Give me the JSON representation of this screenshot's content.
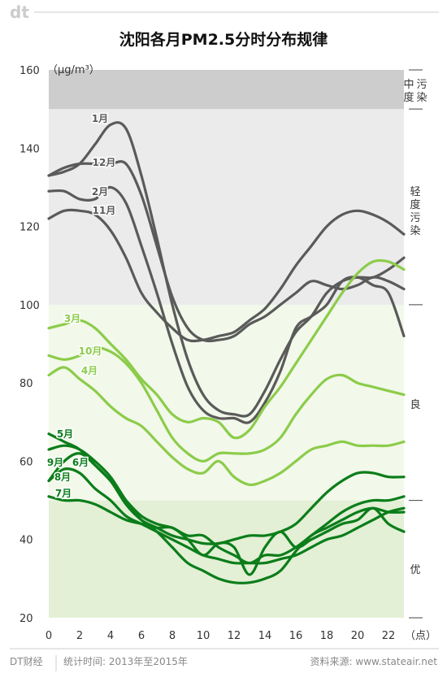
{
  "brand": {
    "logo": "dt",
    "source": "DT财经"
  },
  "footer": {
    "period": "统计时间: 2013年至2015年",
    "source": "资料来源: www.stateair.net"
  },
  "colors": {
    "heavy_band": "#cdcdcd",
    "light_band": "#ebebeb",
    "good_band": "#f2f8ea",
    "excellent_band": "#e3f0d5",
    "winter": "#5a5a5a",
    "spring_autumn": "#8ccc4a",
    "summer": "#0b7d1a"
  },
  "chart_data": {
    "type": "line",
    "title": "沈阳各月PM2.5分时分布规律",
    "ylabel": "（μg/m³）",
    "xlabel": "（点）",
    "xlim": [
      0,
      23
    ],
    "ylim": [
      20,
      160
    ],
    "xticks": [
      0,
      2,
      4,
      6,
      8,
      10,
      12,
      14,
      16,
      18,
      20,
      22
    ],
    "yticks": [
      20,
      40,
      60,
      80,
      100,
      120,
      140,
      160
    ],
    "bands": [
      {
        "label": "优",
        "from": 20,
        "to": 50,
        "color": "excellent_band"
      },
      {
        "label": "良",
        "from": 50,
        "to": 100,
        "color": "good_band"
      },
      {
        "label": "轻度污染",
        "from": 100,
        "to": 150,
        "color": "light_band"
      },
      {
        "label": "中度污染",
        "from": 150,
        "to": 160,
        "color": "heavy_band"
      }
    ],
    "series": [
      {
        "name": "1月",
        "color": "winter",
        "values": [
          133,
          134,
          136,
          141,
          146,
          145,
          133,
          117,
          100,
          86,
          77,
          73,
          72,
          72,
          78,
          86,
          93,
          97,
          103,
          106,
          107,
          107,
          109,
          112
        ]
      },
      {
        "name": "12月",
        "color": "winter",
        "values": [
          133,
          135,
          136,
          136,
          136,
          136,
          128,
          115,
          102,
          94,
          91,
          91,
          92,
          95,
          97,
          100,
          103,
          106,
          105,
          104,
          105,
          107,
          106,
          104
        ]
      },
      {
        "name": "2月",
        "color": "winter",
        "values": [
          129,
          129,
          127,
          127,
          130,
          126,
          115,
          103,
          90,
          79,
          73,
          71,
          71,
          70,
          75,
          83,
          94,
          97,
          100,
          106,
          107,
          105,
          103,
          92
        ]
      },
      {
        "name": "11月",
        "color": "winter",
        "values": [
          122,
          124,
          124,
          123,
          119,
          112,
          103,
          98,
          94,
          91,
          91,
          92,
          93,
          96,
          99,
          104,
          110,
          115,
          120,
          123,
          124,
          123,
          121,
          118
        ]
      },
      {
        "name": "3月",
        "color": "spring_autumn",
        "values": [
          94,
          95,
          96,
          94,
          90,
          86,
          81,
          77,
          72,
          70,
          71,
          70,
          66,
          68,
          74,
          79,
          85,
          91,
          97,
          103,
          108,
          111,
          111,
          109
        ]
      },
      {
        "name": "10月",
        "color": "spring_autumn",
        "values": [
          87,
          86,
          87,
          89,
          88,
          85,
          80,
          73,
          66,
          62,
          60,
          62,
          62,
          62,
          63,
          66,
          72,
          77,
          81,
          82,
          80,
          79,
          78,
          77
        ]
      },
      {
        "name": "4月",
        "color": "spring_autumn",
        "values": [
          82,
          84,
          81,
          78,
          74,
          71,
          69,
          65,
          61,
          58,
          57,
          60,
          56,
          54,
          55,
          57,
          60,
          63,
          64,
          65,
          64,
          64,
          64,
          65
        ]
      },
      {
        "name": "5月",
        "color": "summer",
        "values": [
          67,
          65,
          63,
          59,
          55,
          50,
          46,
          44,
          43,
          41,
          41,
          38,
          36,
          34,
          36,
          36,
          38,
          41,
          44,
          47,
          49,
          50,
          50,
          51
        ]
      },
      {
        "name": "9月",
        "color": "summer",
        "values": [
          63,
          64,
          63,
          60,
          56,
          50,
          45,
          42,
          38,
          34,
          32,
          30,
          29,
          29,
          30,
          32,
          37,
          41,
          43,
          45,
          47,
          48,
          47,
          47
        ]
      },
      {
        "name": "6月",
        "color": "summer",
        "values": [
          55,
          60,
          62,
          59,
          55,
          49,
          45,
          43,
          41,
          40,
          39,
          39,
          40,
          41,
          41,
          42,
          44,
          48,
          52,
          55,
          57,
          57,
          56,
          56
        ]
      },
      {
        "name": "8月",
        "color": "summer",
        "values": [
          55,
          58,
          57,
          53,
          50,
          46,
          44,
          42,
          40,
          38,
          36,
          35,
          34,
          34,
          34,
          35,
          36,
          38,
          40,
          41,
          43,
          45,
          47,
          48
        ]
      },
      {
        "name": "7月",
        "color": "summer",
        "values": [
          51,
          50,
          50,
          49,
          47,
          45,
          44,
          43,
          43,
          40,
          36,
          39,
          38,
          31,
          38,
          42,
          38,
          40,
          42,
          44,
          45,
          48,
          44,
          42
        ]
      }
    ]
  }
}
